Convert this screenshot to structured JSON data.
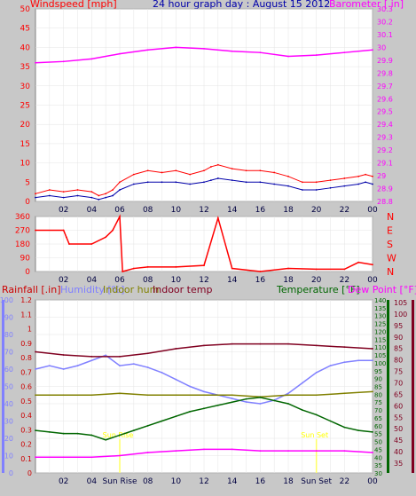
{
  "chart_data": [
    {
      "type": "line",
      "title": "24 hour graph day : August 15 2012",
      "ylabel": "Windspeed [mph]",
      "ylabel_right": "Barometer [.in]",
      "x_ticks": [
        "02",
        "04",
        "06",
        "08",
        "10",
        "12",
        "14",
        "16",
        "18",
        "20",
        "22",
        "00"
      ],
      "ylim": [
        0,
        50
      ],
      "y_ticks": [
        0,
        5,
        10,
        15,
        20,
        25,
        30,
        35,
        40,
        45,
        50
      ],
      "ylim_right": [
        28.8,
        30.3
      ],
      "y_ticks_right": [
        "28.8",
        "28.9",
        "29",
        "29.1",
        "29.2",
        "29.3",
        "29.4",
        "29.5",
        "29.6",
        "29.7",
        "29.8",
        "29.9",
        "30",
        "30.1",
        "30.2",
        "30.3"
      ],
      "grid": true,
      "series": [
        {
          "name": "Windspeed [mph]",
          "color": "#ff0000",
          "axis": "left",
          "x": [
            0,
            1,
            2,
            3,
            4,
            4.5,
            5,
            5.5,
            6,
            7,
            8,
            9,
            10,
            11,
            12,
            12.5,
            13,
            14,
            15,
            16,
            17,
            18,
            19,
            20,
            21,
            22,
            23,
            23.5,
            24
          ],
          "y": [
            2,
            3,
            2.5,
            3,
            2.5,
            1.5,
            2,
            3,
            5,
            7,
            8,
            7.5,
            8,
            7,
            8,
            9,
            9.5,
            8.5,
            8,
            8,
            7.5,
            6.5,
            5,
            5,
            5.5,
            6,
            6.5,
            7,
            6.5
          ]
        },
        {
          "name": "Wind average",
          "color": "#0000aa",
          "axis": "left",
          "x": [
            0,
            1,
            2,
            3,
            4,
            4.5,
            5,
            5.5,
            6,
            7,
            8,
            9,
            10,
            11,
            12,
            12.5,
            13,
            14,
            15,
            16,
            17,
            18,
            19,
            20,
            21,
            22,
            23,
            23.5,
            24
          ],
          "y": [
            1,
            1.5,
            1,
            1.5,
            1,
            0.5,
            1,
            1.5,
            3,
            4.5,
            5,
            5,
            5,
            4.5,
            5,
            5.5,
            6,
            5.5,
            5,
            5,
            4.5,
            4,
            3,
            3,
            3.5,
            4,
            4.5,
            5,
            4.5
          ]
        },
        {
          "name": "Barometer [.in]",
          "color": "#ff00ff",
          "axis": "right",
          "x": [
            0,
            2,
            4,
            6,
            8,
            10,
            12,
            14,
            16,
            18,
            20,
            22,
            24
          ],
          "y": [
            29.88,
            29.89,
            29.91,
            29.95,
            29.98,
            30.0,
            29.99,
            29.97,
            29.96,
            29.93,
            29.94,
            29.96,
            29.98
          ]
        }
      ]
    },
    {
      "type": "line",
      "ylabel": "",
      "x_ticks": [
        "02",
        "04",
        "06",
        "08",
        "10",
        "12",
        "14",
        "16",
        "18",
        "20",
        "22",
        "00"
      ],
      "ylim": [
        0,
        360
      ],
      "y_ticks": [
        0,
        90,
        180,
        270,
        360
      ],
      "y_ticks_right": [
        "N",
        "W",
        "S",
        "E",
        "N"
      ],
      "grid": true,
      "series": [
        {
          "name": "Wind direction",
          "color": "#ff0000",
          "x": [
            0,
            2,
            2.2,
            2.4,
            4,
            5,
            5.5,
            6,
            6.2,
            7,
            8,
            10,
            12,
            13,
            14,
            16,
            18,
            20,
            22,
            23,
            24
          ],
          "y": [
            270,
            270,
            225,
            180,
            180,
            225,
            270,
            360,
            0,
            20,
            30,
            30,
            40,
            350,
            20,
            0,
            20,
            15,
            15,
            60,
            45
          ]
        }
      ]
    },
    {
      "type": "line",
      "ylabel": "Rainfall [.in]",
      "series_labels": [
        "Humidity [%]",
        "Indoor hum",
        "Indoor temp",
        "Temperature [°F]",
        "Dew Point [°F]"
      ],
      "x_ticks": [
        "02",
        "04",
        "Sun Rise",
        "08",
        "10",
        "12",
        "14",
        "16",
        "18",
        "Sun Set",
        "22",
        "00"
      ],
      "y_ticks_rain": [
        "0",
        "0.1",
        "0.2",
        "0.3",
        "0.4",
        "0.5",
        "0.6",
        "0.7",
        "0.8",
        "0.9",
        "1",
        "1.1",
        "1.2"
      ],
      "ylim_rain": [
        0,
        1.2
      ],
      "y_ticks_humidity": [
        "0",
        "10",
        "20",
        "30",
        "40",
        "50",
        "60",
        "70",
        "80",
        "90",
        "100"
      ],
      "ylim_humidity": [
        0,
        100
      ],
      "y_ticks_temp": [
        "30",
        "35",
        "40",
        "45",
        "50",
        "55",
        "60",
        "65",
        "70",
        "75",
        "80",
        "85",
        "90",
        "95",
        "100",
        "105",
        "110",
        "115",
        "120",
        "125",
        "130",
        "135",
        "140"
      ],
      "ylim_temp": [
        30,
        140
      ],
      "y_ticks_dew": [
        "35",
        "40",
        "45",
        "50",
        "55",
        "60",
        "65",
        "70",
        "75",
        "80",
        "85",
        "90",
        "95",
        "100",
        "105"
      ],
      "annotations": [
        "Sun Rise",
        "Sun Set"
      ],
      "grid": true,
      "series": [
        {
          "name": "Humidity [%]",
          "color": "#8080ff",
          "axis": "humidity",
          "x": [
            0,
            1,
            2,
            3,
            4,
            5,
            6,
            7,
            8,
            9,
            10,
            11,
            12,
            13,
            14,
            15,
            16,
            17,
            18,
            19,
            20,
            21,
            22,
            23,
            24
          ],
          "y": [
            60,
            62,
            60,
            62,
            65,
            68,
            62,
            63,
            61,
            58,
            54,
            50,
            47,
            45,
            43,
            41,
            40,
            42,
            46,
            52,
            58,
            62,
            64,
            65,
            65
          ]
        },
        {
          "name": "Indoor hum",
          "color": "#808000",
          "axis": "humidity",
          "x": [
            0,
            2,
            4,
            6,
            8,
            10,
            12,
            14,
            16,
            18,
            20,
            22,
            24
          ],
          "y": [
            45,
            45,
            45,
            46,
            45,
            45,
            45,
            45,
            44,
            45,
            45,
            46,
            47
          ]
        },
        {
          "name": "Indoor temp",
          "color": "#800020",
          "axis": "temp",
          "x": [
            0,
            2,
            4,
            6,
            8,
            10,
            12,
            14,
            16,
            18,
            20,
            22,
            24
          ],
          "y": [
            107,
            105,
            104,
            104,
            106,
            109,
            111,
            112,
            112,
            112,
            111,
            110,
            109
          ]
        },
        {
          "name": "Temperature [°F]",
          "color": "#006600",
          "axis": "temp",
          "x": [
            0,
            1,
            2,
            3,
            4,
            5,
            6,
            7,
            8,
            9,
            10,
            11,
            12,
            13,
            14,
            15,
            16,
            17,
            18,
            19,
            20,
            21,
            22,
            23,
            24
          ],
          "y": [
            57,
            56,
            55,
            55,
            54,
            51,
            54,
            57,
            60,
            63,
            66,
            69,
            71,
            73,
            75,
            77,
            78,
            76,
            74,
            70,
            67,
            63,
            59,
            57,
            56
          ]
        },
        {
          "name": "Dew Point [°F]",
          "color": "#ff00ff",
          "axis": "temp",
          "x": [
            0,
            2,
            4,
            6,
            8,
            10,
            12,
            14,
            16,
            18,
            20,
            22,
            24
          ],
          "y": [
            40,
            40,
            40,
            41,
            43,
            44,
            45,
            45,
            44,
            44,
            44,
            44,
            43
          ]
        }
      ]
    }
  ]
}
